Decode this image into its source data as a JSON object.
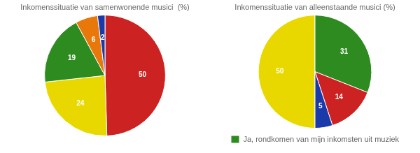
{
  "chart_data": [
    {
      "type": "pie",
      "title": "Inkomenssituatie van samenwonende musici  (%)",
      "values": [
        50,
        24,
        19,
        6,
        2
      ],
      "colors": [
        "#cc2222",
        "#e8d800",
        "#2e8b20",
        "#e8780a",
        "#1a3aaa"
      ],
      "data_labels": true
    },
    {
      "type": "pie",
      "title": "Inkomenssituatie van alleenstaande musici (%)",
      "categories": [
        null,
        "Ja, rondkomen van mijn inkomsten uit muziek",
        null,
        null
      ],
      "values": [
        50,
        31,
        14,
        5
      ],
      "colors": [
        "#e8d800",
        "#2e8b20",
        "#cc2222",
        "#1a3aaa"
      ],
      "data_labels": true,
      "legend": "bottom"
    }
  ]
}
